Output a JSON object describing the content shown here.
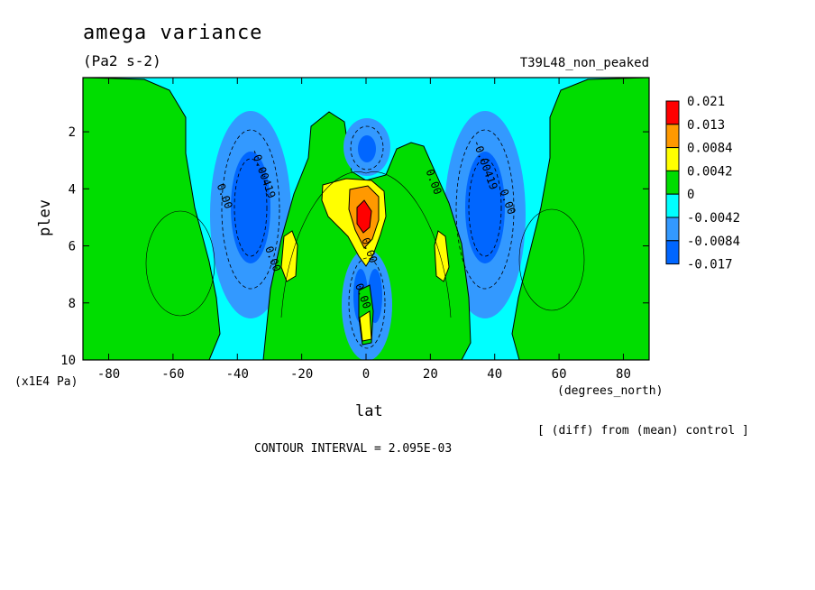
{
  "header": {
    "title": "amega variance",
    "units": "(Pa2 s-2)",
    "experiment": "T39L48_non_peaked"
  },
  "footer": {
    "diff_note": "[ (diff) from (mean) control ]",
    "contour_interval": "CONTOUR INTERVAL = 2.095E-03"
  },
  "chart_data": {
    "type": "contour",
    "title": "amega variance",
    "subtitle": "(Pa2 s-2)",
    "xlabel": "lat",
    "x_units": "(degrees_north)",
    "ylabel": "plev",
    "y_scale_label": "(x1E4 Pa)",
    "xlim": [
      -88,
      88
    ],
    "ylim": [
      10,
      0.1
    ],
    "x_ticks": [
      -80,
      -60,
      -40,
      -20,
      0,
      20,
      40,
      60,
      80
    ],
    "y_ticks": [
      2,
      4,
      6,
      8,
      10
    ],
    "colorbar": {
      "labels": [
        "0.021",
        "0.013",
        "0.0084",
        "0.0042",
        "0",
        "-0.0042",
        "-0.0084",
        "-0.017"
      ],
      "colors": [
        "#ff0000",
        "#ff9900",
        "#ffff00",
        "#00dd00",
        "#00ffff",
        "#3399ff",
        "#0066ff"
      ]
    },
    "contour_labels": [
      {
        "text": "0.00",
        "lat": -45,
        "plev": 4.3
      },
      {
        "text": "-0.00419",
        "lat": -33,
        "plev": 3.5
      },
      {
        "text": "0.00",
        "lat": -30,
        "plev": 6.5
      },
      {
        "text": "0.00",
        "lat": 20,
        "plev": 3.8
      },
      {
        "text": "-0.00419",
        "lat": 36,
        "plev": 3.2
      },
      {
        "text": "0.00",
        "lat": 43,
        "plev": 4.5
      },
      {
        "text": "0.00",
        "lat": 0,
        "plev": 6.2
      },
      {
        "text": "0.00",
        "lat": -2,
        "plev": 7.8
      }
    ],
    "features": [
      {
        "kind": "negative_max",
        "lat": -38,
        "plev": 4.5,
        "value": -0.0084
      },
      {
        "kind": "negative_max",
        "lat": 38,
        "plev": 4.5,
        "value": -0.0084
      },
      {
        "kind": "negative_max",
        "lat": 0,
        "plev": 2.6,
        "value": -0.0084
      },
      {
        "kind": "positive_max",
        "lat": 0,
        "plev": 5.0,
        "value": 0.021
      },
      {
        "kind": "positive_max",
        "lat": 0,
        "plev": 8.6,
        "value": 0.0084
      }
    ]
  }
}
